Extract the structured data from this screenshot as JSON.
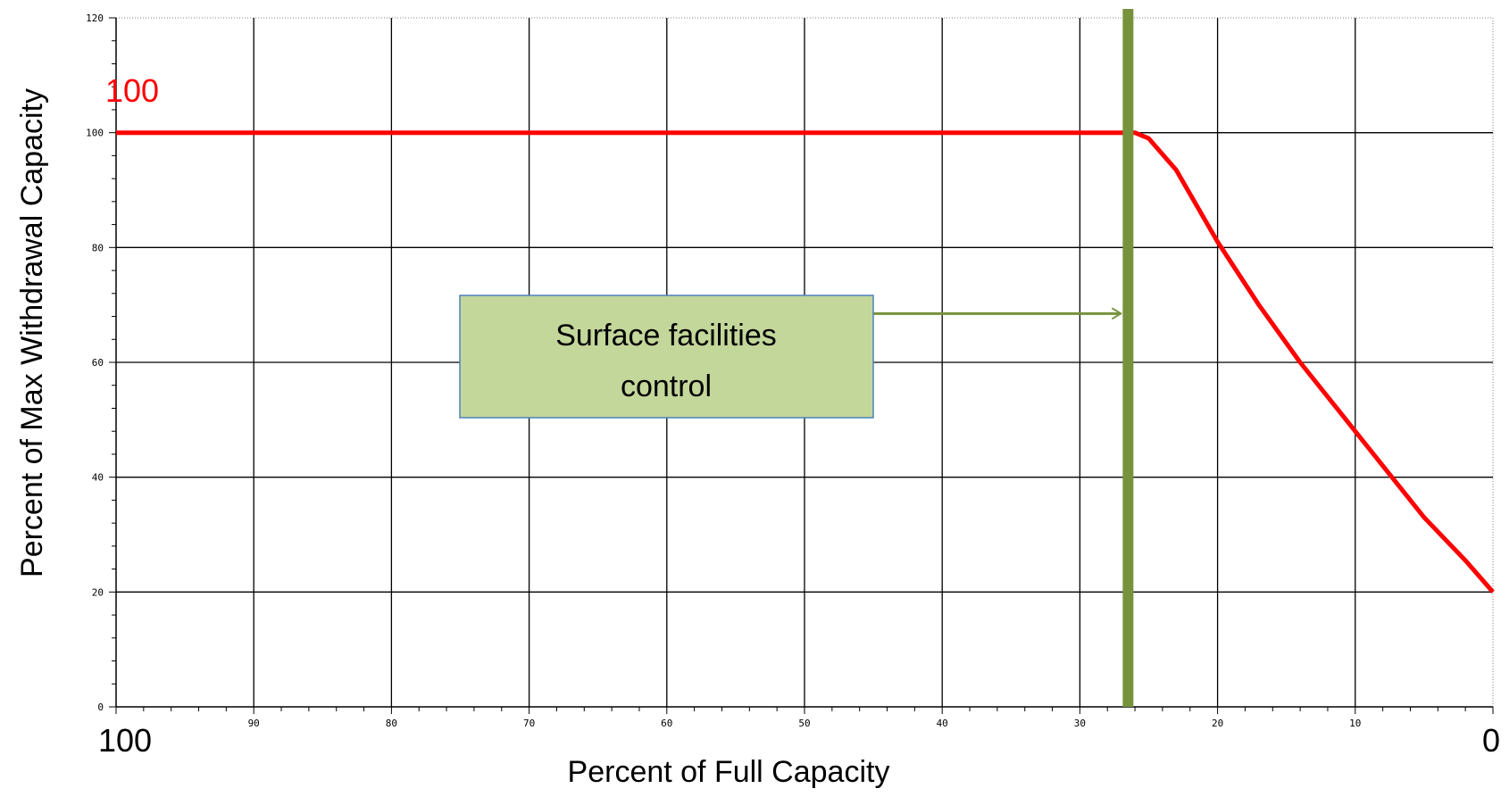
{
  "chart_data": {
    "type": "line",
    "xlabel": "Percent of Full Capacity",
    "ylabel": "Percent of Max Withdrawal Capacity",
    "xlim": [
      100,
      0
    ],
    "ylim": [
      0,
      120
    ],
    "x_ticks": [
      90,
      80,
      70,
      60,
      50,
      40,
      30,
      20,
      10
    ],
    "y_ticks": [
      0,
      20,
      40,
      60,
      80,
      100,
      120
    ],
    "x_end_labels": {
      "left": "100",
      "right": "0"
    },
    "grid": true,
    "series": [
      {
        "color": "#ff0000",
        "points": [
          [
            100,
            100
          ],
          [
            26,
            100
          ],
          [
            25,
            99
          ],
          [
            23,
            93.5
          ],
          [
            20,
            81
          ],
          [
            17,
            70
          ],
          [
            14,
            60
          ],
          [
            11,
            51
          ],
          [
            8,
            42
          ],
          [
            5,
            33
          ],
          [
            2,
            25.5
          ],
          [
            0,
            20
          ]
        ]
      }
    ],
    "annotations": {
      "value_label": {
        "text": "100",
        "color": "#ff0000",
        "x": 100,
        "y": 100
      },
      "vertical_line": {
        "x": 26.5,
        "color": "#76923c"
      },
      "callout": {
        "text_line1": "Surface facilities",
        "text_line2": "control",
        "fill": "#c4d79b",
        "border": "#4f81bd",
        "arrow_color": "#76923c",
        "anchor": {
          "x": 75,
          "y": 70
        },
        "points_to": {
          "x": 26.5,
          "y": 68.5
        }
      }
    }
  }
}
